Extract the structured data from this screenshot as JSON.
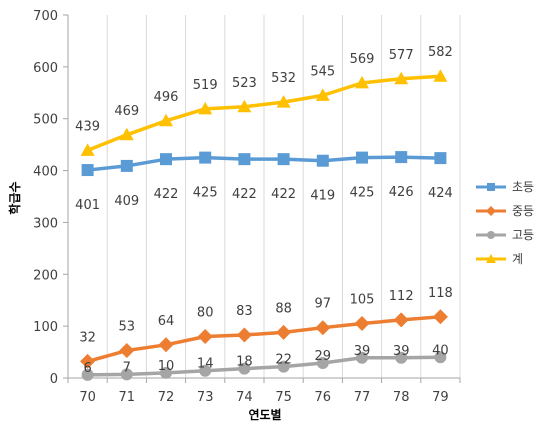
{
  "chart_data": {
    "type": "line",
    "title": "",
    "xlabel": "연도별",
    "ylabel": "학급수",
    "categories": [
      "70",
      "71",
      "72",
      "73",
      "74",
      "75",
      "76",
      "77",
      "78",
      "79"
    ],
    "ylim": [
      0,
      700
    ],
    "yticks": [
      "0",
      "100",
      "200",
      "300",
      "400",
      "500",
      "600",
      "700"
    ],
    "grid": "vertical",
    "legend_position": "right",
    "series": [
      {
        "name": "초등",
        "color": "#5B9BD5",
        "marker": "square",
        "values": [
          401,
          409,
          422,
          425,
          422,
          422,
          419,
          425,
          426,
          424
        ]
      },
      {
        "name": "중등",
        "color": "#ED7D31",
        "marker": "diamond",
        "values": [
          32,
          53,
          64,
          80,
          83,
          88,
          97,
          105,
          112,
          118
        ]
      },
      {
        "name": "고등",
        "color": "#A5A5A5",
        "marker": "circle",
        "values": [
          6,
          7,
          10,
          14,
          18,
          22,
          29,
          39,
          39,
          40
        ]
      },
      {
        "name": "계",
        "color": "#FFC000",
        "marker": "triangle",
        "values": [
          439,
          469,
          496,
          519,
          523,
          532,
          545,
          569,
          577,
          582
        ]
      }
    ]
  }
}
